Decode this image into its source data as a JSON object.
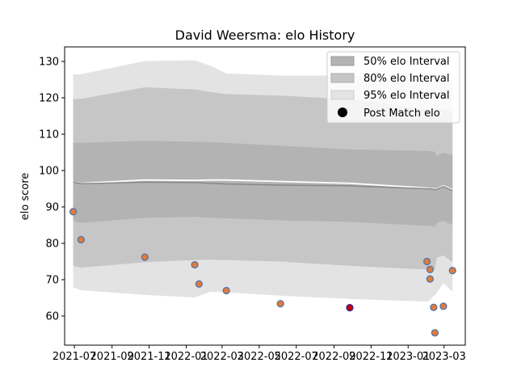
{
  "chart_data": {
    "type": "line",
    "title": "David Weersma: elo History",
    "xlabel": "",
    "ylabel": "elo score",
    "xlim": [
      "2021-06-15",
      "2023-04-05"
    ],
    "ylim": [
      52,
      134
    ],
    "x_ticks": [
      "2021-07",
      "2021-09",
      "2021-11",
      "2022-01",
      "2022-03",
      "2022-05",
      "2022-07",
      "2022-09",
      "2022-11",
      "2023-01",
      "2023-03"
    ],
    "y_ticks": [
      60,
      70,
      80,
      90,
      100,
      110,
      120,
      130
    ],
    "grid": false,
    "legend": {
      "placement": "top-right",
      "entries": [
        "50% elo Interval",
        "80% elo Interval",
        "95% elo Interval",
        "Post Match elo"
      ]
    },
    "colors": {
      "band50": "#b3b3b3",
      "band80": "#c6c6c6",
      "band95": "#e3e3e3",
      "mean_line": "#888888",
      "median_line": "#ffffff",
      "point_fill": "#e07b39",
      "point_edge": "#4a72b0",
      "highlight_fill": "#cc0000",
      "highlight_edge": "#2a2a9a"
    },
    "x": [
      "2021-06-29",
      "2021-07-12",
      "2021-10-25",
      "2022-01-15",
      "2022-02-10",
      "2022-03-08",
      "2022-06-05",
      "2022-09-27",
      "2023-02-01",
      "2023-02-06",
      "2023-02-12",
      "2023-02-14",
      "2023-02-17",
      "2023-02-28",
      "2023-03-15"
    ],
    "series": [
      {
        "role": "mean",
        "values": [
          96.8,
          96.4,
          96.8,
          96.7,
          96.5,
          96.3,
          96.0,
          95.8,
          95.0,
          95.0,
          94.8,
          94.8,
          94.8,
          95.6,
          94.5
        ]
      },
      {
        "role": "median",
        "values": [
          96.8,
          96.5,
          97.4,
          97.3,
          97.4,
          97.4,
          97.0,
          96.5,
          95.2,
          95.1,
          95.0,
          95.0,
          94.9,
          95.8,
          94.7
        ]
      },
      {
        "role": "band50_upper",
        "values": [
          107.6,
          107.6,
          108.2,
          107.9,
          107.8,
          107.6,
          106.8,
          105.8,
          105.4,
          105.3,
          105.2,
          105.2,
          104.0,
          104.9,
          104.3
        ]
      },
      {
        "role": "band50_lower",
        "values": [
          86.2,
          85.6,
          87.0,
          87.3,
          87.0,
          86.9,
          86.3,
          85.9,
          84.8,
          84.8,
          84.6,
          84.6,
          85.6,
          86.2,
          85.1
        ]
      },
      {
        "role": "band80_upper",
        "values": [
          119.6,
          119.7,
          122.9,
          122.3,
          121.6,
          121.0,
          120.6,
          119.6,
          116.8,
          116.7,
          116.6,
          116.6,
          116.0,
          116.9,
          116.2
        ]
      },
      {
        "role": "band80_lower",
        "values": [
          73.8,
          73.3,
          74.8,
          75.4,
          75.5,
          75.4,
          75.0,
          73.8,
          72.8,
          72.9,
          72.8,
          72.8,
          76.0,
          76.7,
          74.8
        ]
      },
      {
        "role": "band95_upper",
        "values": [
          126.4,
          126.5,
          130.1,
          130.3,
          128.8,
          126.7,
          126.1,
          126.1,
          125.0,
          124.9,
          124.7,
          124.7,
          124.0,
          124.5,
          123.9
        ]
      },
      {
        "role": "band95_lower",
        "values": [
          67.9,
          67.1,
          65.8,
          65.1,
          66.7,
          66.5,
          65.6,
          64.7,
          64.0,
          64.3,
          65.7,
          65.7,
          66.4,
          69.0,
          66.7
        ]
      }
    ],
    "points": {
      "name": "Post Match elo",
      "x": [
        "2021-06-29",
        "2021-07-12",
        "2021-10-25",
        "2022-01-15",
        "2022-01-22",
        "2022-03-08",
        "2022-06-05",
        "2022-09-27",
        "2023-02-01",
        "2023-02-06",
        "2023-02-06",
        "2023-02-12",
        "2023-02-14",
        "2023-02-28",
        "2023-03-15"
      ],
      "values": [
        88.7,
        81.0,
        76.2,
        74.1,
        68.8,
        67.0,
        63.4,
        62.3,
        75.0,
        72.8,
        70.2,
        62.4,
        55.4,
        62.7,
        72.5
      ],
      "highlight": [
        false,
        false,
        false,
        false,
        false,
        false,
        false,
        true,
        false,
        false,
        false,
        false,
        false,
        false,
        false
      ]
    }
  }
}
